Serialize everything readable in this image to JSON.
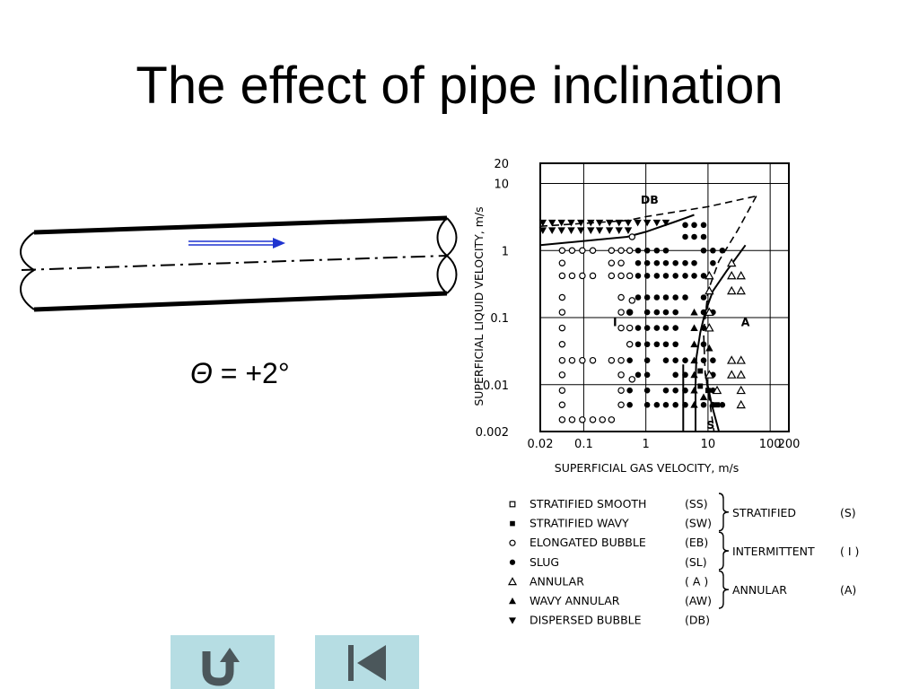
{
  "slide": {
    "title": "The effect of pipe inclination",
    "angle": {
      "symbol": "Θ",
      "text": " = +2°"
    }
  },
  "chart_data": {
    "type": "scatter",
    "title": "",
    "xlabel": "SUPERFICIAL  GAS  VELOCITY, m/s",
    "ylabel": "SUPERFICIAL  LIQUID  VELOCITY, m/s",
    "xscale": "log",
    "yscale": "log",
    "xlim": [
      0.02,
      200
    ],
    "ylim": [
      0.002,
      20
    ],
    "grid": true,
    "x_ticks": [
      {
        "value": 0.02,
        "label": "0.02"
      },
      {
        "value": 0.1,
        "label": "0.1"
      },
      {
        "value": 1,
        "label": "1"
      },
      {
        "value": 10,
        "label": "10"
      },
      {
        "value": 100,
        "label": "100"
      },
      {
        "value": 200,
        "label": "200"
      }
    ],
    "y_ticks": [
      {
        "value": 0.002,
        "label": "0.002"
      },
      {
        "value": 0.01,
        "label": "0.01"
      },
      {
        "value": 0.1,
        "label": "0.1"
      },
      {
        "value": 1,
        "label": "1"
      },
      {
        "value": 10,
        "label": "10"
      },
      {
        "value": 20,
        "label": "20"
      }
    ],
    "region_labels": [
      {
        "text": "DB",
        "x": 1.15,
        "y": 5.0
      },
      {
        "text": "I",
        "x": 0.32,
        "y": 0.075
      },
      {
        "text": "A",
        "x": 40,
        "y": 0.075
      },
      {
        "text": "S",
        "x": 11,
        "y": 0.0022
      }
    ],
    "series": [
      {
        "name": "DISPERSED  BUBBLE",
        "marker": "tri-down",
        "points": [
          [
            0.022,
            2.6
          ],
          [
            0.031,
            2.6
          ],
          [
            0.044,
            2.6
          ],
          [
            0.063,
            2.6
          ],
          [
            0.09,
            2.6
          ],
          [
            0.13,
            2.6
          ],
          [
            0.18,
            2.6
          ],
          [
            0.26,
            2.6
          ],
          [
            0.37,
            2.6
          ],
          [
            0.52,
            2.6
          ],
          [
            0.74,
            2.6
          ],
          [
            1.05,
            2.6
          ],
          [
            1.5,
            2.6
          ],
          [
            2.1,
            2.6
          ],
          [
            0.022,
            2.0
          ],
          [
            0.031,
            2.0
          ],
          [
            0.044,
            2.0
          ],
          [
            0.063,
            2.0
          ],
          [
            0.09,
            2.0
          ],
          [
            0.13,
            2.0
          ],
          [
            0.18,
            2.0
          ],
          [
            0.26,
            2.0
          ],
          [
            0.37,
            2.0
          ],
          [
            0.52,
            2.0
          ]
        ]
      },
      {
        "name": "ELONGATED  BUBBLE",
        "marker": "circle-open",
        "points": [
          [
            0.045,
            1.0
          ],
          [
            0.065,
            1.0
          ],
          [
            0.095,
            1.0
          ],
          [
            0.14,
            1.0
          ],
          [
            0.28,
            1.0
          ],
          [
            0.4,
            1.0
          ],
          [
            0.55,
            1.0
          ],
          [
            0.045,
            0.65
          ],
          [
            0.28,
            0.65
          ],
          [
            0.4,
            0.65
          ],
          [
            0.045,
            0.42
          ],
          [
            0.065,
            0.42
          ],
          [
            0.095,
            0.42
          ],
          [
            0.14,
            0.42
          ],
          [
            0.28,
            0.42
          ],
          [
            0.4,
            0.42
          ],
          [
            0.55,
            0.42
          ],
          [
            0.045,
            0.2
          ],
          [
            0.4,
            0.2
          ],
          [
            0.045,
            0.12
          ],
          [
            0.4,
            0.12
          ],
          [
            0.55,
            0.12
          ],
          [
            0.045,
            0.07
          ],
          [
            0.4,
            0.07
          ],
          [
            0.55,
            0.07
          ],
          [
            0.045,
            0.04
          ],
          [
            0.55,
            0.04
          ],
          [
            0.045,
            0.023
          ],
          [
            0.065,
            0.023
          ],
          [
            0.095,
            0.023
          ],
          [
            0.14,
            0.023
          ],
          [
            0.28,
            0.023
          ],
          [
            0.4,
            0.023
          ],
          [
            0.045,
            0.014
          ],
          [
            0.4,
            0.014
          ],
          [
            0.045,
            0.0082
          ],
          [
            0.4,
            0.0082
          ],
          [
            0.045,
            0.005
          ],
          [
            0.4,
            0.005
          ],
          [
            0.045,
            0.003
          ],
          [
            0.065,
            0.003
          ],
          [
            0.095,
            0.003
          ],
          [
            0.14,
            0.003
          ],
          [
            0.2,
            0.003
          ],
          [
            0.28,
            0.003
          ],
          [
            0.6,
            1.6
          ],
          [
            0.6,
            0.18
          ],
          [
            0.6,
            0.012
          ]
        ]
      },
      {
        "name": "SLUG",
        "marker": "circle-filled",
        "points": [
          [
            0.75,
            1.0
          ],
          [
            1.05,
            1.0
          ],
          [
            1.5,
            1.0
          ],
          [
            2.1,
            1.0
          ],
          [
            0.75,
            0.65
          ],
          [
            1.05,
            0.65
          ],
          [
            1.5,
            0.65
          ],
          [
            2.1,
            0.65
          ],
          [
            3.0,
            0.65
          ],
          [
            4.3,
            0.65
          ],
          [
            6.0,
            0.65
          ],
          [
            0.75,
            0.42
          ],
          [
            1.05,
            0.42
          ],
          [
            1.5,
            0.42
          ],
          [
            2.1,
            0.42
          ],
          [
            3.0,
            0.42
          ],
          [
            4.3,
            0.42
          ],
          [
            6.0,
            0.42
          ],
          [
            0.75,
            0.2
          ],
          [
            1.05,
            0.2
          ],
          [
            1.5,
            0.2
          ],
          [
            2.1,
            0.2
          ],
          [
            3.0,
            0.2
          ],
          [
            4.3,
            0.2
          ],
          [
            0.55,
            0.12
          ],
          [
            1.05,
            0.12
          ],
          [
            1.5,
            0.12
          ],
          [
            2.1,
            0.12
          ],
          [
            3.0,
            0.12
          ],
          [
            0.75,
            0.07
          ],
          [
            1.05,
            0.07
          ],
          [
            1.5,
            0.07
          ],
          [
            2.1,
            0.07
          ],
          [
            3.0,
            0.07
          ],
          [
            0.75,
            0.04
          ],
          [
            1.05,
            0.04
          ],
          [
            1.5,
            0.04
          ],
          [
            2.1,
            0.04
          ],
          [
            3.0,
            0.04
          ],
          [
            0.55,
            0.023
          ],
          [
            1.05,
            0.023
          ],
          [
            2.1,
            0.023
          ],
          [
            3.0,
            0.023
          ],
          [
            4.3,
            0.023
          ],
          [
            0.75,
            0.014
          ],
          [
            1.05,
            0.014
          ],
          [
            3.0,
            0.014
          ],
          [
            4.3,
            0.014
          ],
          [
            0.55,
            0.0082
          ],
          [
            1.05,
            0.0082
          ],
          [
            2.1,
            0.0082
          ],
          [
            3.0,
            0.0082
          ],
          [
            4.3,
            0.0082
          ],
          [
            0.55,
            0.005
          ],
          [
            1.05,
            0.005
          ],
          [
            1.5,
            0.005
          ],
          [
            2.1,
            0.005
          ],
          [
            3.0,
            0.005
          ],
          [
            4.3,
            0.005
          ],
          [
            4.3,
            1.6
          ],
          [
            6.0,
            1.6
          ],
          [
            8.5,
            1.6
          ],
          [
            4.3,
            2.4
          ],
          [
            6.0,
            2.4
          ],
          [
            8.5,
            2.4
          ],
          [
            8.5,
            1.0
          ],
          [
            12,
            1.0
          ],
          [
            17,
            1.0
          ],
          [
            12,
            0.65
          ],
          [
            8.5,
            0.42
          ],
          [
            8.5,
            0.2
          ],
          [
            8.5,
            0.12
          ],
          [
            12,
            0.12
          ],
          [
            8.5,
            0.07
          ],
          [
            8.5,
            0.04
          ],
          [
            8.5,
            0.023
          ],
          [
            12,
            0.023
          ],
          [
            12,
            0.014
          ],
          [
            12,
            0.0082
          ],
          [
            8.5,
            0.005
          ],
          [
            12,
            0.005
          ],
          [
            17,
            0.005
          ]
        ]
      },
      {
        "name": "ANNULAR",
        "marker": "tri-open",
        "points": [
          [
            24,
            0.65
          ],
          [
            24,
            0.42
          ],
          [
            34,
            0.42
          ],
          [
            24,
            0.25
          ],
          [
            34,
            0.25
          ],
          [
            10.5,
            0.42
          ],
          [
            10.5,
            0.25
          ],
          [
            10.5,
            0.12
          ],
          [
            10.5,
            0.07
          ],
          [
            24,
            0.023
          ],
          [
            34,
            0.023
          ],
          [
            24,
            0.014
          ],
          [
            34,
            0.014
          ],
          [
            34,
            0.0082
          ],
          [
            34,
            0.005
          ],
          [
            10.5,
            0.014
          ],
          [
            14,
            0.0082
          ]
        ]
      },
      {
        "name": "WAVY  ANNULAR",
        "marker": "tri-filled",
        "points": [
          [
            6.0,
            0.12
          ],
          [
            6.0,
            0.07
          ],
          [
            6.0,
            0.04
          ],
          [
            6.0,
            0.023
          ],
          [
            6.0,
            0.014
          ],
          [
            6.0,
            0.0082
          ],
          [
            6.0,
            0.005
          ],
          [
            8.5,
            0.0065
          ],
          [
            10.5,
            0.035
          ]
        ]
      },
      {
        "name": "STRATIFIED  WAVY",
        "marker": "square-filled",
        "points": [
          [
            7.5,
            0.016
          ],
          [
            7.5,
            0.0095
          ],
          [
            10,
            0.0082
          ],
          [
            14,
            0.005
          ]
        ]
      }
    ],
    "boundaries": [
      {
        "style": "solid",
        "points": [
          [
            0.02,
            1.2
          ],
          [
            0.5,
            1.6
          ],
          [
            1.0,
            1.9
          ],
          [
            3.0,
            2.7
          ],
          [
            6.0,
            3.4
          ]
        ]
      },
      {
        "style": "dashed",
        "points": [
          [
            0.02,
            2.3
          ],
          [
            0.5,
            2.8
          ],
          [
            1.0,
            3.2
          ],
          [
            10,
            4.5
          ],
          [
            60,
            6.5
          ]
        ]
      },
      {
        "style": "dashed",
        "points": [
          [
            60,
            6.5
          ],
          [
            30,
            2.0
          ],
          [
            15,
            0.7
          ],
          [
            10,
            0.25
          ],
          [
            8.5,
            0.06
          ],
          [
            9,
            0.015
          ],
          [
            10.5,
            0.006
          ],
          [
            12.5,
            0.002
          ]
        ]
      },
      {
        "style": "solid",
        "points": [
          [
            40,
            1.2
          ],
          [
            20,
            0.5
          ],
          [
            12,
            0.25
          ],
          [
            9.0,
            0.12
          ],
          [
            7.5,
            0.06
          ],
          [
            6.5,
            0.025
          ],
          [
            6.3,
            0.01
          ],
          [
            6.3,
            0.002
          ]
        ]
      },
      {
        "style": "solid",
        "points": [
          [
            4.0,
            0.02
          ],
          [
            4.0,
            0.002
          ]
        ]
      },
      {
        "style": "solid",
        "points": [
          [
            9.0,
            0.015
          ],
          [
            11.5,
            0.005
          ],
          [
            15,
            0.002
          ]
        ]
      }
    ],
    "legend": {
      "placement": "bottom",
      "items": [
        {
          "marker": "square-open",
          "label": "STRATIFIED  SMOOTH",
          "code": "(SS)"
        },
        {
          "marker": "square-filled",
          "label": "STRATIFIED  WAVY",
          "code": "(SW)"
        },
        {
          "marker": "circle-open",
          "label": "ELONGATED  BUBBLE",
          "code": "(EB)"
        },
        {
          "marker": "circle-filled",
          "label": "SLUG",
          "code": "(SL)"
        },
        {
          "marker": "tri-open",
          "label": "ANNULAR",
          "code": "( A )"
        },
        {
          "marker": "tri-filled",
          "label": "WAVY  ANNULAR",
          "code": "(AW)"
        },
        {
          "marker": "tri-down",
          "label": "DISPERSED  BUBBLE",
          "code": "(DB)"
        }
      ],
      "groups": [
        {
          "label": "STRATIFIED",
          "code": "(S)",
          "members": [
            0,
            1
          ]
        },
        {
          "label": "INTERMITTENT",
          "code": "( I )",
          "members": [
            2,
            3
          ]
        },
        {
          "label": "ANNULAR",
          "code": "(A)",
          "members": [
            4,
            5
          ]
        }
      ]
    }
  },
  "nav": {
    "back_icon": "u-turn-icon",
    "first_icon": "skip-to-first-icon",
    "button_color": "#b6dde3",
    "icon_color": "#4b575b"
  },
  "colors": {
    "flow_arrow": "#1f34d0",
    "ink": "#000000"
  }
}
